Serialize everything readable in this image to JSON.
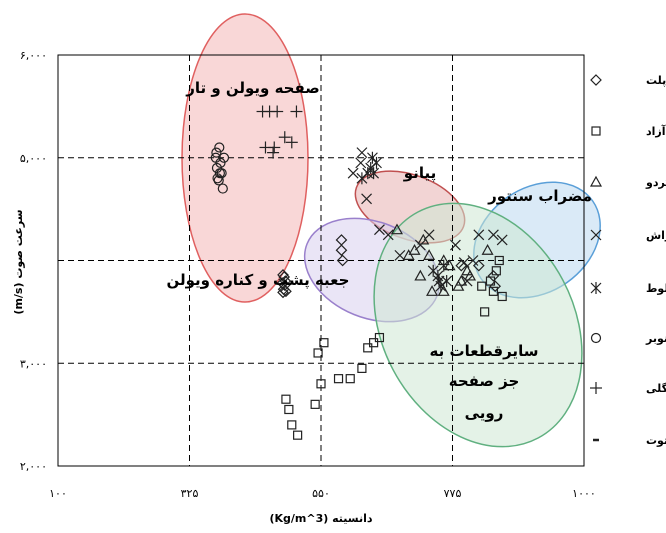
{
  "chart_data": {
    "type": "scatter",
    "xlabel": "دانسیته (Kg/m^3)",
    "ylabel": "سرعت صوت (m/s)",
    "xlim": [
      100,
      1000
    ],
    "ylim": [
      2000,
      6000
    ],
    "x_ticks": [
      100,
      325,
      550,
      775,
      1000
    ],
    "y_ticks": [
      2000,
      3000,
      5000,
      6000
    ],
    "x_tick_labels": [
      "۱۰۰",
      "۳۲۵",
      "۵۵۰",
      "۷۷۵",
      "۱۰۰۰"
    ],
    "y_tick_labels": [
      "۲,۰۰۰",
      "۳,۰۰۰",
      "۵,۰۰۰",
      "۶,۰۰۰"
    ],
    "dashed_gridlines": {
      "x": [
        325,
        550,
        775
      ],
      "y": [
        3000,
        4000,
        5000
      ]
    },
    "legend_placement": "right",
    "regions": [
      {
        "label": "صفحه ویولن و تار",
        "color": "#f4b6b6",
        "stroke": "#e06060"
      },
      {
        "label": "پیانو",
        "color": "#e8b0b0",
        "stroke": "#c05050"
      },
      {
        "label": "مضراب سنتور",
        "color": "#bcd8f0",
        "stroke": "#5a9fd8"
      },
      {
        "label": "جعبه پشت و کناره ویولن",
        "color": "#d8d0ee",
        "stroke": "#9a80cc"
      },
      {
        "label_lines": [
          "سایرقطعات به",
          "جز صفحه",
          "رویی"
        ],
        "color": "#cde8d4",
        "stroke": "#60b080"
      }
    ],
    "series": [
      {
        "name": "افرا پلت",
        "marker": "diamond",
        "points": [
          [
            485,
            3860
          ],
          [
            487,
            3840
          ],
          [
            489,
            3800
          ],
          [
            484,
            3780
          ],
          [
            488,
            3760
          ],
          [
            486,
            3720
          ],
          [
            490,
            3700
          ],
          [
            485,
            3690
          ],
          [
            585,
            4200
          ],
          [
            585,
            4100
          ],
          [
            587,
            4000
          ],
          [
            790,
            3950
          ],
          [
            820,
            3950
          ],
          [
            845,
            3850
          ],
          [
            848,
            3750
          ]
        ]
      },
      {
        "name": "آزاد",
        "marker": "square",
        "points": [
          [
            540,
            2600
          ],
          [
            550,
            2800
          ],
          [
            580,
            2850
          ],
          [
            600,
            2850
          ],
          [
            620,
            2950
          ],
          [
            630,
            3150
          ],
          [
            640,
            3200
          ],
          [
            650,
            3250
          ],
          [
            555,
            3200
          ],
          [
            545,
            3100
          ],
          [
            490,
            2650
          ],
          [
            495,
            2550
          ],
          [
            500,
            2400
          ],
          [
            510,
            2300
          ],
          [
            830,
            3500
          ],
          [
            840,
            3800
          ],
          [
            850,
            3900
          ],
          [
            855,
            4000
          ],
          [
            845,
            3700
          ],
          [
            860,
            3650
          ],
          [
            825,
            3750
          ]
        ]
      },
      {
        "name": "گردو",
        "marker": "triangle",
        "points": [
          [
            680,
            4300
          ],
          [
            700,
            4050
          ],
          [
            725,
            4200
          ],
          [
            710,
            4100
          ],
          [
            735,
            4050
          ],
          [
            760,
            4000
          ],
          [
            770,
            3950
          ],
          [
            720,
            3850
          ],
          [
            800,
            3900
          ],
          [
            790,
            3800
          ],
          [
            740,
            3700
          ],
          [
            760,
            3700
          ],
          [
            785,
            3750
          ],
          [
            805,
            3850
          ],
          [
            835,
            4100
          ]
        ]
      },
      {
        "name": "راش",
        "marker": "x",
        "points": [
          [
            605,
            4850
          ],
          [
            618,
            4950
          ],
          [
            620,
            5050
          ],
          [
            628,
            4600
          ],
          [
            650,
            4300
          ],
          [
            665,
            4250
          ],
          [
            685,
            4050
          ],
          [
            720,
            4150
          ],
          [
            735,
            4250
          ],
          [
            780,
            4150
          ],
          [
            795,
            3980
          ],
          [
            800,
            3800
          ],
          [
            810,
            4000
          ],
          [
            820,
            4250
          ],
          [
            845,
            4250
          ],
          [
            860,
            4200
          ]
        ]
      },
      {
        "name": "بلوط",
        "marker": "asterisk",
        "points": [
          [
            620,
            4800
          ],
          [
            630,
            4850
          ],
          [
            635,
            4900
          ],
          [
            640,
            4850
          ],
          [
            638,
            5000
          ],
          [
            645,
            4950
          ],
          [
            742,
            3900
          ],
          [
            750,
            3850
          ],
          [
            752,
            3800
          ],
          [
            755,
            3750
          ],
          [
            760,
            3950
          ],
          [
            765,
            3800
          ]
        ]
      },
      {
        "name": "صنوبر",
        "marker": "circle",
        "points": [
          [
            370,
            5000
          ],
          [
            372,
            4900
          ],
          [
            373,
            4800
          ],
          [
            376,
            5100
          ],
          [
            378,
            4950
          ],
          [
            380,
            4850
          ],
          [
            382,
            4700
          ],
          [
            375,
            4780
          ],
          [
            371,
            5050
          ],
          [
            384,
            5000
          ],
          [
            377,
            4850
          ]
        ]
      },
      {
        "name": "کاج جنگلی",
        "marker": "plus",
        "points": [
          [
            450,
            5450
          ],
          [
            462,
            5450
          ],
          [
            475,
            5450
          ],
          [
            455,
            5100
          ],
          [
            468,
            5050
          ],
          [
            470,
            5100
          ],
          [
            488,
            5200
          ],
          [
            500,
            5150
          ],
          [
            508,
            5450
          ]
        ]
      },
      {
        "name": "توت",
        "marker": "dash",
        "points": []
      }
    ]
  }
}
